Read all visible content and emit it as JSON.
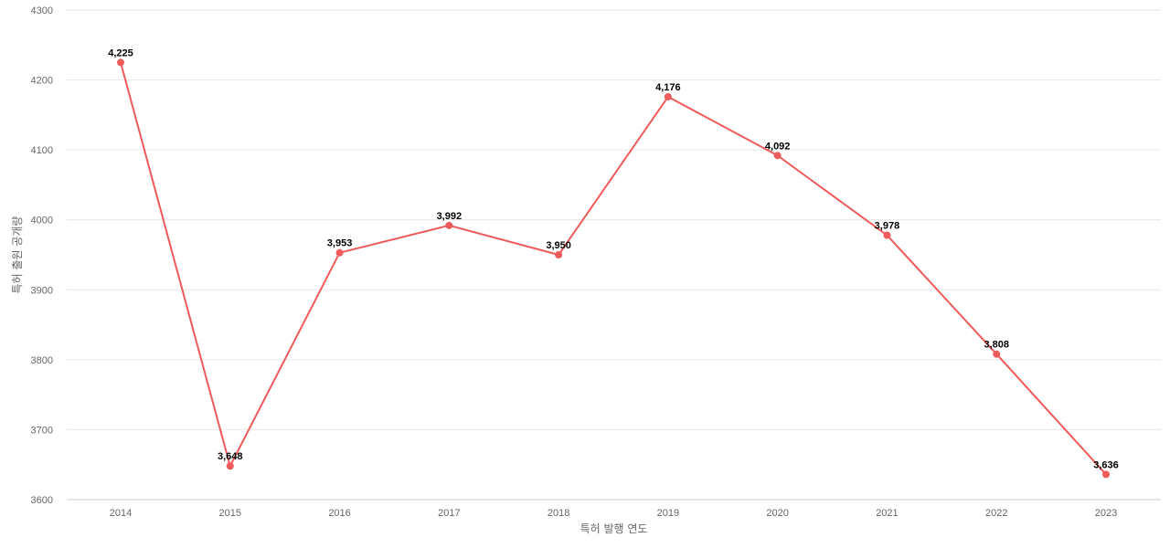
{
  "chart_data": {
    "type": "line",
    "title": "",
    "xlabel": "특허 발행 연도",
    "ylabel": "특허 출원 공개량",
    "categories": [
      "2014",
      "2015",
      "2016",
      "2017",
      "2018",
      "2019",
      "2020",
      "2021",
      "2022",
      "2023"
    ],
    "series": [
      {
        "values": [
          4225,
          3648,
          3953,
          3992,
          3950,
          4176,
          4092,
          3978,
          3808,
          3636
        ],
        "data_labels": [
          "4,225",
          "3,648",
          "3,953",
          "3,992",
          "3,950",
          "4,176",
          "4,092",
          "3,978",
          "3,808",
          "3,636"
        ],
        "color": "#ef5a5a"
      }
    ],
    "ylim": [
      3600,
      4300
    ],
    "yticks": [
      "3600",
      "3700",
      "3800",
      "3900",
      "4000",
      "4100",
      "4200",
      "4300"
    ],
    "grid": true,
    "legend": "none"
  }
}
